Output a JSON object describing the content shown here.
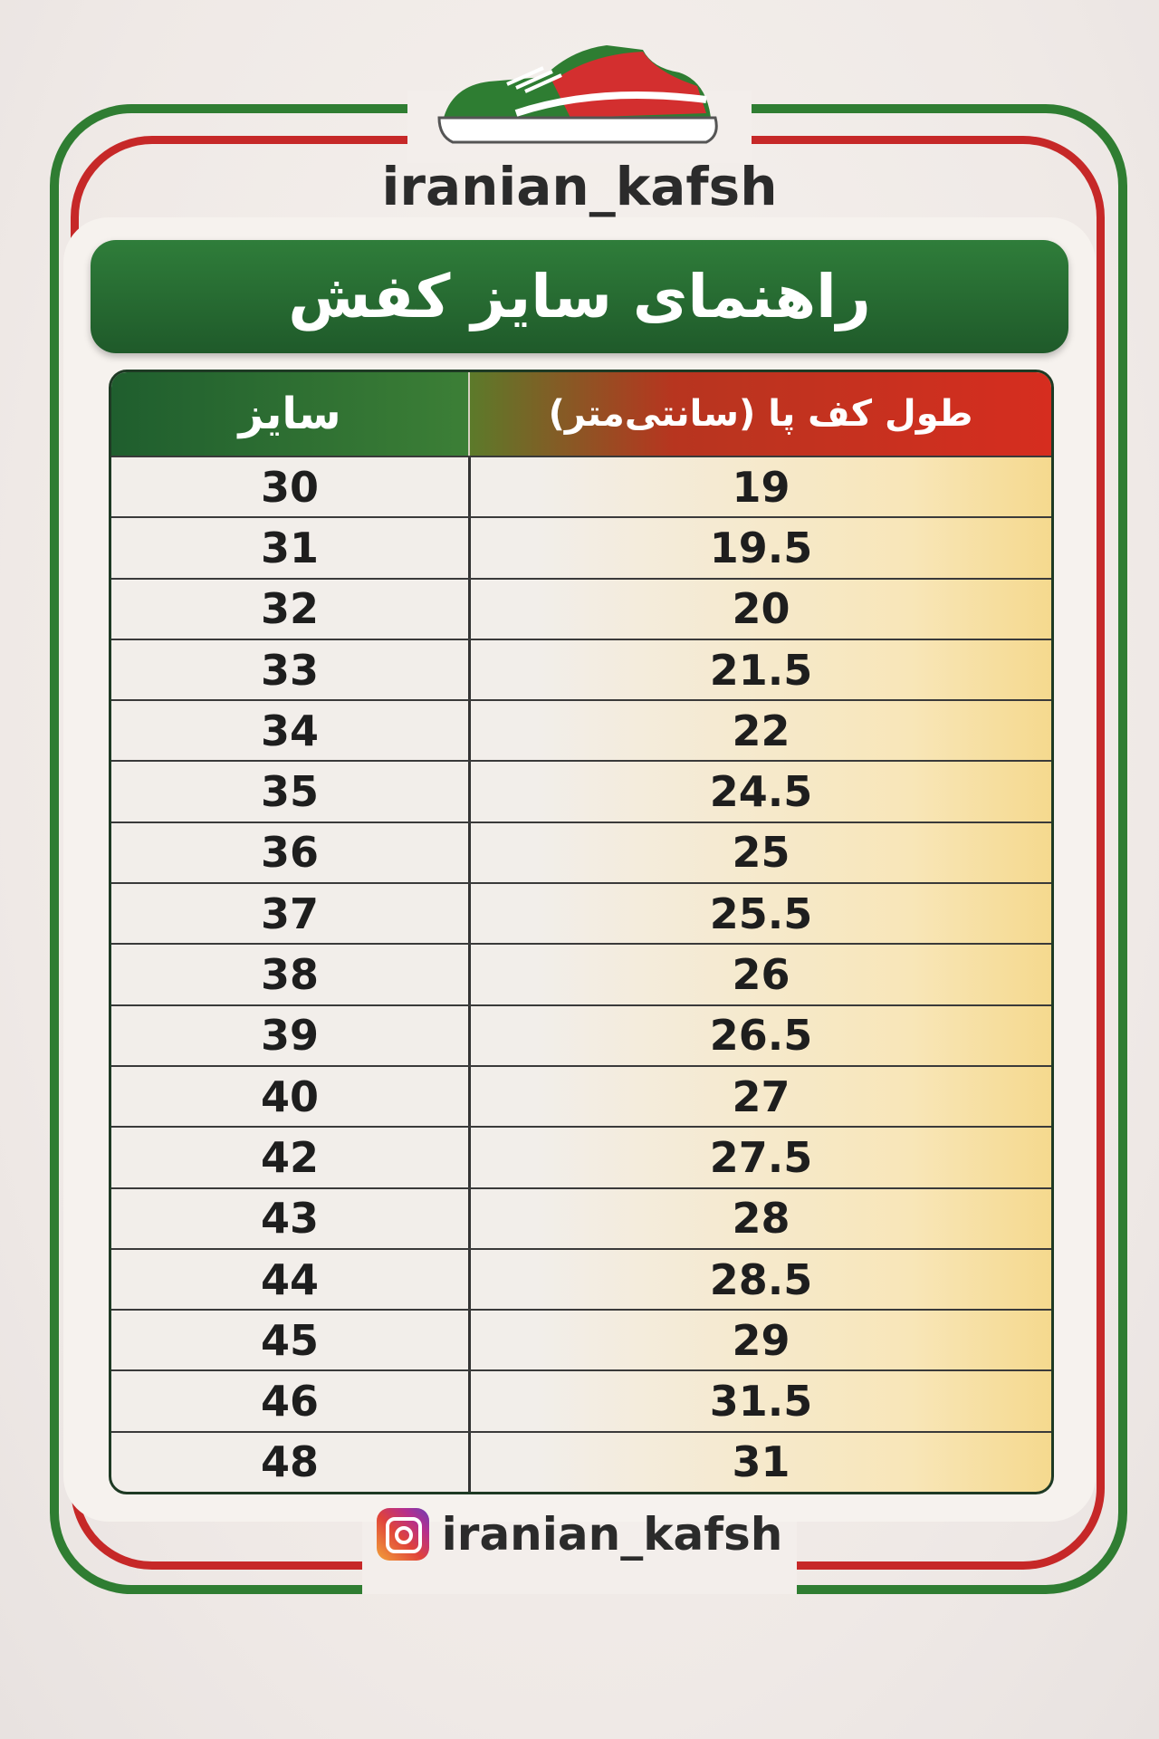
{
  "brand": "iranian_kafsh",
  "title": "راهنمای سایز کفش",
  "table": {
    "headers": {
      "size": "سایز",
      "length": "طول کف پا (سانتی‌متر)"
    },
    "rows": [
      {
        "size": "30",
        "length": "19"
      },
      {
        "size": "31",
        "length": "19.5"
      },
      {
        "size": "32",
        "length": "20"
      },
      {
        "size": "33",
        "length": "21.5"
      },
      {
        "size": "34",
        "length": "22"
      },
      {
        "size": "35",
        "length": "24.5"
      },
      {
        "size": "36",
        "length": "25"
      },
      {
        "size": "37",
        "length": "25.5"
      },
      {
        "size": "38",
        "length": "26"
      },
      {
        "size": "39",
        "length": "26.5"
      },
      {
        "size": "40",
        "length": "27"
      },
      {
        "size": "42",
        "length": "27.5"
      },
      {
        "size": "43",
        "length": "28"
      },
      {
        "size": "44",
        "length": "28.5"
      },
      {
        "size": "45",
        "length": "29"
      },
      {
        "size": "46",
        "length": "31.5"
      },
      {
        "size": "48",
        "length": "31"
      }
    ]
  },
  "footer": {
    "icon": "instagram-icon",
    "handle": "iranian_kafsh"
  },
  "colors": {
    "green": "#2f7d32",
    "red": "#c62828",
    "cream": "#f5d98e"
  }
}
